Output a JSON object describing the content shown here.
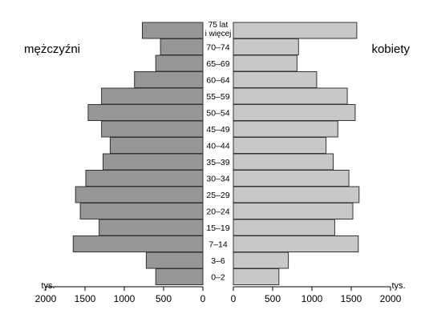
{
  "chart_data": {
    "type": "bar",
    "subtype": "population-pyramid",
    "categories": [
      "0–2",
      "3–6",
      "7–14",
      "15–19",
      "20–24",
      "25–29",
      "30–34",
      "35–39",
      "40–44",
      "45–49",
      "50–54",
      "55–59",
      "60–64",
      "65–69",
      "70–74",
      "75 lat i więcej"
    ],
    "category_label_lines": [
      [
        "0–2"
      ],
      [
        "3–6"
      ],
      [
        "7–14"
      ],
      [
        "15–19"
      ],
      [
        "20–24"
      ],
      [
        "25–29"
      ],
      [
        "30–34"
      ],
      [
        "35–39"
      ],
      [
        "40–44"
      ],
      [
        "45–49"
      ],
      [
        "50–54"
      ],
      [
        "55–59"
      ],
      [
        "60–64"
      ],
      [
        "65–69"
      ],
      [
        "70–74"
      ],
      [
        "75 lat",
        "i więcej"
      ]
    ],
    "series": [
      {
        "name": "mężczyźni",
        "side": "left",
        "color": "#969696",
        "values": [
          600,
          720,
          1650,
          1320,
          1560,
          1620,
          1490,
          1270,
          1180,
          1290,
          1460,
          1290,
          870,
          600,
          540,
          770
        ]
      },
      {
        "name": "kobiety",
        "side": "right",
        "color": "#c8c8c8",
        "values": [
          580,
          700,
          1590,
          1290,
          1520,
          1600,
          1470,
          1270,
          1180,
          1330,
          1550,
          1450,
          1060,
          810,
          830,
          1570
        ]
      }
    ],
    "x_unit": "tys.",
    "x_ticks": [
      2000,
      1500,
      1000,
      500,
      0
    ],
    "xlim": [
      0,
      2000
    ],
    "bar_outline": "#333333",
    "legend": "none (series names printed top-left and top-right)",
    "grid": false
  }
}
